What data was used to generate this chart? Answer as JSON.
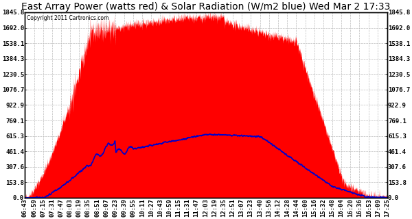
{
  "title": "East Array Power (watts red) & Solar Radiation (W/m2 blue) Wed Mar 2 17:33",
  "copyright": "Copyright 2011 Cartronics.com",
  "time_start": "06:43",
  "time_end": "17:25",
  "y_max": 1845.8,
  "y_min": 0.0,
  "yticks": [
    0.0,
    153.8,
    307.6,
    461.4,
    615.3,
    769.1,
    922.9,
    1076.7,
    1230.5,
    1384.3,
    1538.1,
    1692.0,
    1845.8
  ],
  "power_color": "#FF0000",
  "radiation_color": "#0000CC",
  "background_color": "#FFFFFF",
  "grid_color": "#BBBBBB",
  "face_color": "#FFFFFF",
  "title_fontsize": 10,
  "tick_fontsize": 6.5,
  "tick_times_str": [
    "06:43",
    "06:59",
    "07:15",
    "07:31",
    "07:47",
    "08:03",
    "08:19",
    "08:35",
    "08:51",
    "09:07",
    "09:23",
    "09:39",
    "09:55",
    "10:11",
    "10:27",
    "10:43",
    "10:59",
    "11:15",
    "11:31",
    "11:47",
    "12:03",
    "12:19",
    "12:35",
    "12:51",
    "13:07",
    "13:23",
    "13:40",
    "13:56",
    "14:12",
    "14:28",
    "14:44",
    "15:00",
    "15:16",
    "15:32",
    "15:48",
    "16:04",
    "16:20",
    "16:36",
    "16:53",
    "17:09",
    "17:25"
  ]
}
